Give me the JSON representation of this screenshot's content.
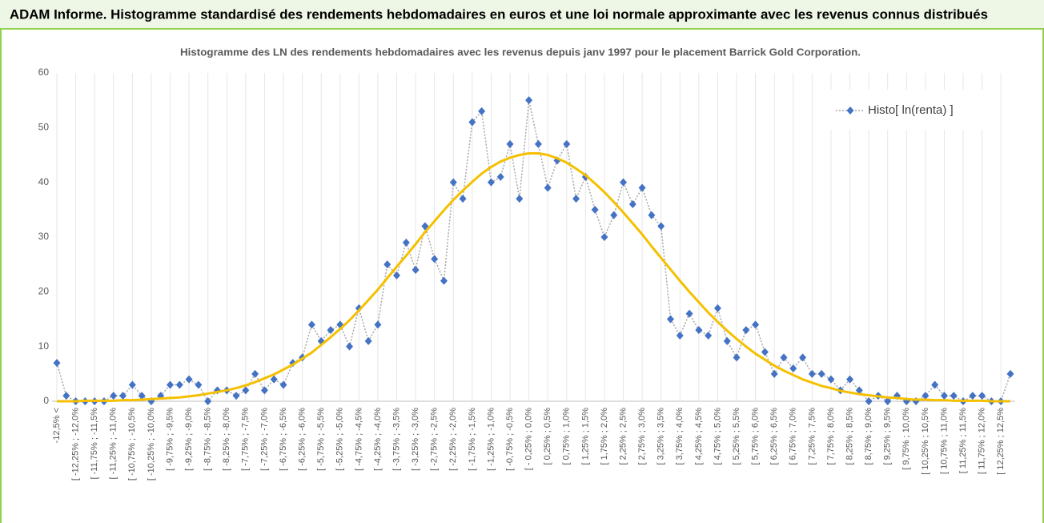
{
  "header": {
    "title": "ADAM Informe. Histogramme standardisé des rendements hebdomadaires en euros et une loi normale approximante avec les revenus connus distribués"
  },
  "chart_data": {
    "type": "line",
    "title": "Histogramme des LN des rendements hebdomadaires avec les revenus depuis janv 1997 pour le placement Barrick Gold Corporation.",
    "categories": [
      "-12,5% <",
      null,
      "[ -12,25% ; -12,0%",
      null,
      "[ -11,75% ; -11,5%",
      null,
      "[ -11,25% ; -11,0%",
      null,
      "[ -10,75% ; -10,5%",
      null,
      "[ -10,25% ; -10,0%",
      null,
      "[ -9,75% ; -9,5%",
      null,
      "[ -9,25% ; -9,0%",
      null,
      "[ -8,75% ; -8,5%",
      null,
      "[ -8,25% ; -8,0%",
      null,
      "[ -7,75% ; -7,5%",
      null,
      "[ -7,25% ; -7,0%",
      null,
      "[ -6,75% ; -6,5%",
      null,
      "[ -6,25% ; -6,0%",
      null,
      "[ -5,75% ; -5,5%",
      null,
      "[ -5,25% ; -5,0%",
      null,
      "[ -4,75% ; -4,5%",
      null,
      "[ -4,25% ; -4,0%",
      null,
      "[ -3,75% ; -3,5%",
      null,
      "[ -3,25% ; -3,0%",
      null,
      "[ -2,75% ; -2,5%",
      null,
      "[ -2,25% ; -2,0%",
      null,
      "[ -1,75% ; -1,5%",
      null,
      "[ -1,25% ; -1,0%",
      null,
      "[ -0,75% ; -0,5%",
      null,
      "[ - 0,25% ; 0,0%",
      null,
      "[ 0,25% ; 0,5%",
      null,
      "[ 0,75% ; 1,0%",
      null,
      "[ 1,25% ; 1,5%",
      null,
      "[ 1,75% ; 2,0%",
      null,
      "[ 2,25% ; 2,5%",
      null,
      "[ 2,75% ; 3,0%",
      null,
      "[ 3,25% ; 3,5%",
      null,
      "[ 3,75% ; 4,0%",
      null,
      "[ 4,25% ; 4,5%",
      null,
      "[ 4,75% ; 5,0%",
      null,
      "[ 5,25% ; 5,5%",
      null,
      "[ 5,75% ; 6,0%",
      null,
      "[ 6,25% ; 6,5%",
      null,
      "[ 6,75% ; 7,0%",
      null,
      "[ 7,25% ; 7,5%",
      null,
      "[ 7,75% ; 8,0%",
      null,
      "[ 8,25% ; 8,5%",
      null,
      "[ 8,75% ; 9,0%",
      null,
      "[ 9,25% ; 9,5%",
      null,
      "[ 9,75% ; 10,0%",
      null,
      "[ 10,25% ; 10,5%",
      null,
      "[ 10,75% ; 11,0%",
      null,
      "[ 11,25% ; 11,5%",
      null,
      "[ 11,75% ; 12,0%",
      null,
      "[ 12,25% ; 12,5%",
      null
    ],
    "series": [
      {
        "name": "Histo[ ln(renta) ]",
        "color": "#4472c4",
        "line_color": "#a6a6a6",
        "dashed": true,
        "marker": "diamond",
        "values": [
          7,
          1,
          0,
          0,
          0,
          0,
          1,
          1,
          3,
          1,
          0,
          1,
          3,
          3,
          4,
          3,
          0,
          2,
          2,
          1,
          2,
          5,
          2,
          4,
          3,
          7,
          8,
          14,
          11,
          13,
          14,
          10,
          17,
          11,
          14,
          25,
          23,
          29,
          24,
          32,
          26,
          22,
          40,
          37,
          51,
          53,
          40,
          41,
          47,
          37,
          55,
          47,
          39,
          44,
          47,
          37,
          41,
          35,
          30,
          34,
          40,
          36,
          39,
          34,
          32,
          15,
          12,
          16,
          13,
          12,
          17,
          11,
          8,
          13,
          14,
          9,
          5,
          8,
          6,
          8,
          5,
          5,
          4,
          2,
          4,
          2,
          0,
          1,
          0,
          1,
          0,
          0,
          1,
          3,
          1,
          1,
          0,
          1,
          1,
          0,
          0,
          5
        ]
      },
      {
        "color": "#f5c000",
        "line_color": "#f5c000",
        "dashed": false,
        "marker": "none",
        "values": [
          0.0,
          0.0,
          0.0,
          0.1,
          0.1,
          0.1,
          0.1,
          0.2,
          0.2,
          0.3,
          0.4,
          0.5,
          0.6,
          0.7,
          0.9,
          1.1,
          1.4,
          1.7,
          2.0,
          2.4,
          2.9,
          3.5,
          4.2,
          4.9,
          5.8,
          6.7,
          7.8,
          8.9,
          10.3,
          11.7,
          13.2,
          14.8,
          16.6,
          18.5,
          20.4,
          22.5,
          24.6,
          26.6,
          28.7,
          30.9,
          32.9,
          34.9,
          36.8,
          38.5,
          40.1,
          41.6,
          42.8,
          43.8,
          44.5,
          45.0,
          45.3,
          45.3,
          45.0,
          44.4,
          43.6,
          42.5,
          41.3,
          39.8,
          38.2,
          36.4,
          34.5,
          32.5,
          30.5,
          28.3,
          26.2,
          24.1,
          22.0,
          20.0,
          18.1,
          16.2,
          14.5,
          12.9,
          11.4,
          10.0,
          8.7,
          7.6,
          6.5,
          5.6,
          4.8,
          4.0,
          3.4,
          2.8,
          2.4,
          1.9,
          1.6,
          1.3,
          1.1,
          0.9,
          0.7,
          0.6,
          0.4,
          0.3,
          0.3,
          0.2,
          0.2,
          0.1,
          0.1,
          0.1,
          0.1,
          0.0,
          0.0,
          0.0
        ]
      }
    ],
    "ylim": [
      0,
      60
    ],
    "yticks": [
      0,
      10,
      20,
      30,
      40,
      50,
      60
    ],
    "grid": "x",
    "legend": "top-right"
  }
}
